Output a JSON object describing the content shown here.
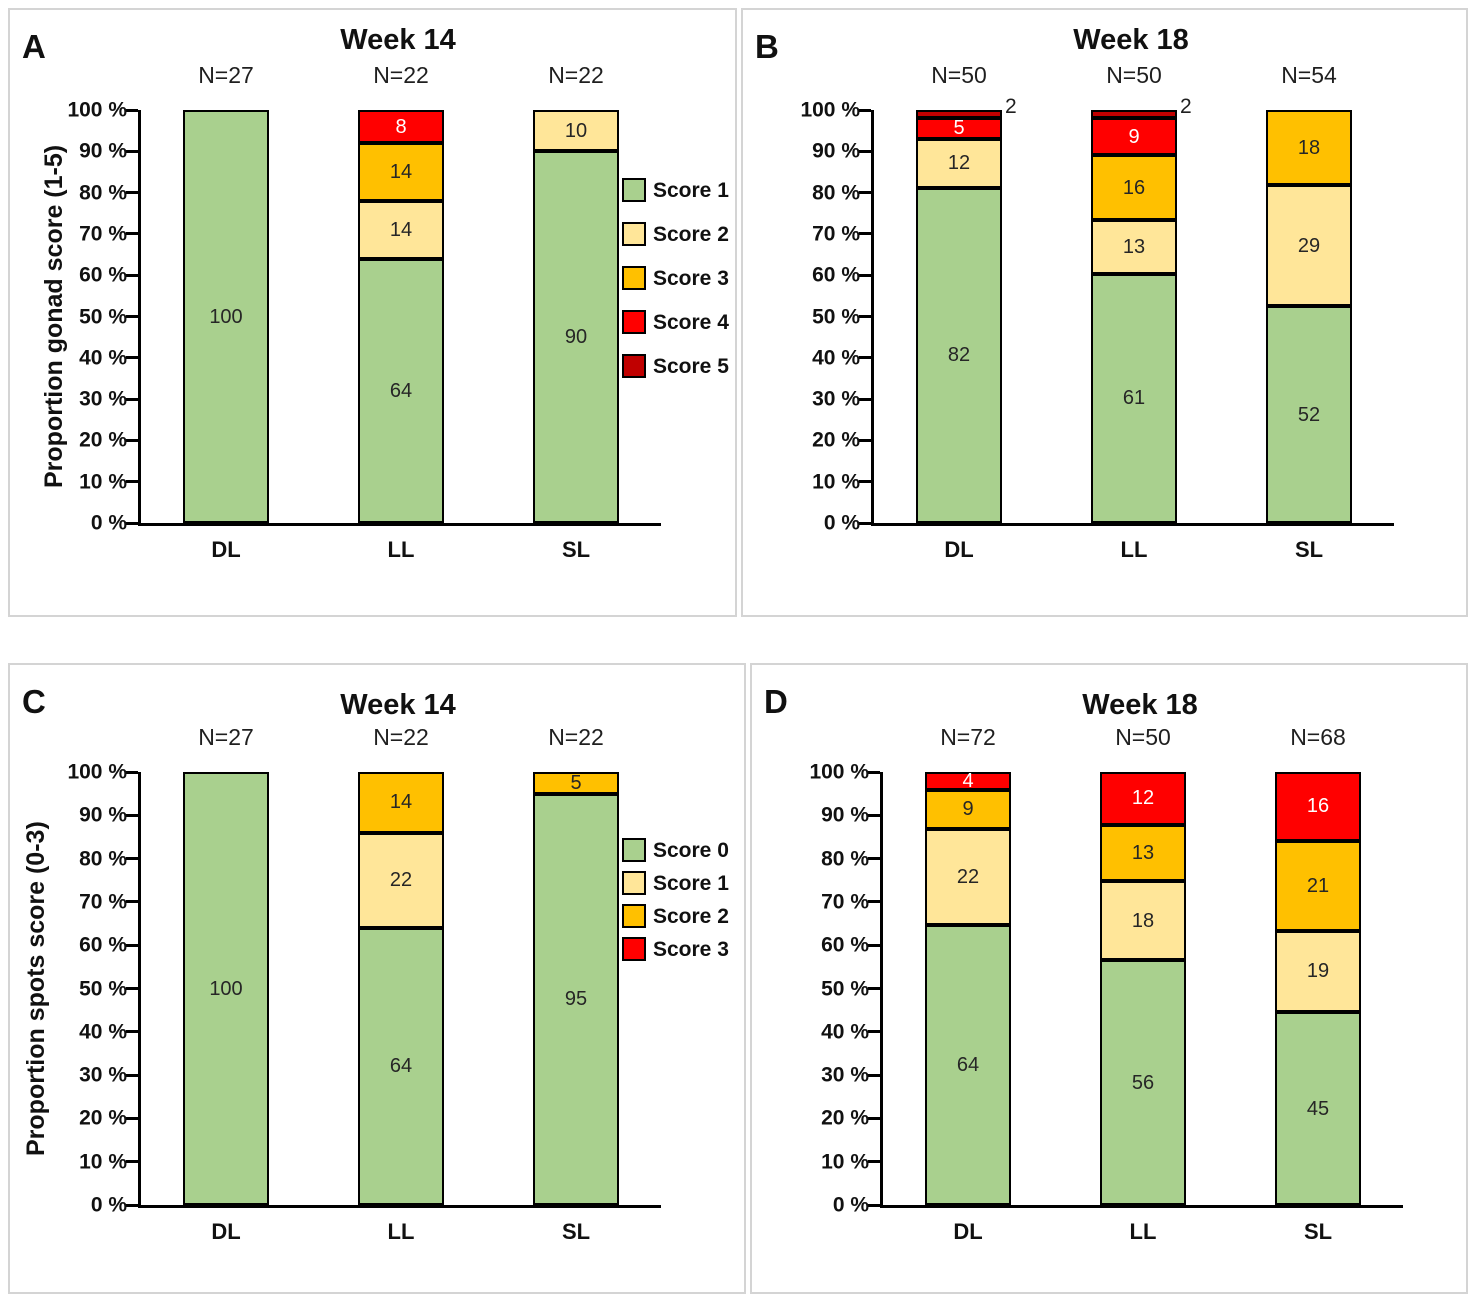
{
  "colors": {
    "green": "#A9D08E",
    "pale_yellow": "#FFE699",
    "orange": "#FFC000",
    "red": "#FF0000",
    "dark_red": "#C00000",
    "label_dark": "#262626",
    "label_light": "#FFFFFF"
  },
  "chart_data": [
    {
      "panel": "A",
      "type": "bar",
      "stacked": true,
      "title": "Week 14",
      "ylabel": "Proportion gonad score (1-5)",
      "ylim": [
        0,
        100
      ],
      "ytick_step": 10,
      "ytick_suffix": " %",
      "grid": false,
      "categories": [
        "DL",
        "LL",
        "SL"
      ],
      "n_labels": [
        "N=27",
        "N=22",
        "N=22"
      ],
      "series": [
        {
          "name": "Score 1",
          "color": "green",
          "label_color": "#262626",
          "values": [
            100,
            64,
            90
          ]
        },
        {
          "name": "Score 2",
          "color": "pale_yellow",
          "label_color": "#262626",
          "values": [
            0,
            14,
            10
          ]
        },
        {
          "name": "Score 3",
          "color": "orange",
          "label_color": "#262626",
          "values": [
            0,
            14,
            0
          ]
        },
        {
          "name": "Score 4",
          "color": "red",
          "label_color": "#FFFFFF",
          "values": [
            0,
            8,
            0
          ]
        },
        {
          "name": "Score 5",
          "color": "dark_red",
          "label_color": "#FFFFFF",
          "values": [
            0,
            0,
            0
          ]
        }
      ],
      "outside_labels": [
        "",
        "",
        ""
      ],
      "legend_position": "right",
      "legend": [
        {
          "label": "Score 1",
          "color": "green"
        },
        {
          "label": "Score 2",
          "color": "pale_yellow"
        },
        {
          "label": "Score 3",
          "color": "orange"
        },
        {
          "label": "Score 4",
          "color": "red"
        },
        {
          "label": "Score 5",
          "color": "dark_red"
        }
      ]
    },
    {
      "panel": "B",
      "type": "bar",
      "stacked": true,
      "title": "Week 18",
      "ylabel": "",
      "ylim": [
        0,
        100
      ],
      "ytick_step": 10,
      "ytick_suffix": " %",
      "grid": false,
      "categories": [
        "DL",
        "LL",
        "SL"
      ],
      "n_labels": [
        "N=50",
        "N=50",
        "N=54"
      ],
      "series": [
        {
          "name": "Score 1",
          "color": "green",
          "label_color": "#262626",
          "values": [
            82,
            61,
            52
          ]
        },
        {
          "name": "Score 2",
          "color": "pale_yellow",
          "label_color": "#262626",
          "values": [
            12,
            13,
            29
          ]
        },
        {
          "name": "Score 3",
          "color": "orange",
          "label_color": "#262626",
          "values": [
            0,
            16,
            18
          ]
        },
        {
          "name": "Score 4",
          "color": "red",
          "label_color": "#FFFFFF",
          "values": [
            5,
            9,
            0
          ]
        },
        {
          "name": "Score 5",
          "color": "dark_red",
          "label_color": "#FFFFFF",
          "values": [
            2,
            2,
            0
          ]
        }
      ],
      "outside_labels": [
        "2",
        "2",
        ""
      ],
      "legend_position": "none",
      "legend": []
    },
    {
      "panel": "C",
      "type": "bar",
      "stacked": true,
      "title": "Week 14",
      "ylabel": "Proportion spots score (0-3)",
      "ylim": [
        0,
        100
      ],
      "ytick_step": 10,
      "ytick_suffix": " %",
      "grid": false,
      "categories": [
        "DL",
        "LL",
        "SL"
      ],
      "n_labels": [
        "N=27",
        "N=22",
        "N=22"
      ],
      "series": [
        {
          "name": "Score 0",
          "color": "green",
          "label_color": "#262626",
          "values": [
            100,
            64,
            95
          ]
        },
        {
          "name": "Score 1",
          "color": "pale_yellow",
          "label_color": "#262626",
          "values": [
            0,
            22,
            0
          ]
        },
        {
          "name": "Score 2",
          "color": "orange",
          "label_color": "#262626",
          "values": [
            0,
            14,
            5
          ]
        },
        {
          "name": "Score 3",
          "color": "red",
          "label_color": "#FFFFFF",
          "values": [
            0,
            0,
            0
          ]
        }
      ],
      "outside_labels": [
        "",
        "",
        ""
      ],
      "legend_position": "right",
      "legend": [
        {
          "label": "Score 0",
          "color": "green"
        },
        {
          "label": "Score 1",
          "color": "pale_yellow"
        },
        {
          "label": "Score 2",
          "color": "orange"
        },
        {
          "label": "Score 3",
          "color": "red"
        }
      ]
    },
    {
      "panel": "D",
      "type": "bar",
      "stacked": true,
      "title": "Week 18",
      "ylabel": "",
      "ylim": [
        0,
        100
      ],
      "ytick_step": 10,
      "ytick_suffix": " %",
      "grid": false,
      "categories": [
        "DL",
        "LL",
        "SL"
      ],
      "n_labels": [
        "N=72",
        "N=50",
        "N=68"
      ],
      "series": [
        {
          "name": "Score 0",
          "color": "green",
          "label_color": "#262626",
          "values": [
            64,
            56,
            45
          ]
        },
        {
          "name": "Score 1",
          "color": "pale_yellow",
          "label_color": "#262626",
          "values": [
            22,
            18,
            19
          ]
        },
        {
          "name": "Score 2",
          "color": "orange",
          "label_color": "#262626",
          "values": [
            9,
            13,
            21
          ]
        },
        {
          "name": "Score 3",
          "color": "red",
          "label_color": "#FFFFFF",
          "values": [
            4,
            12,
            16
          ]
        }
      ],
      "outside_labels": [
        "",
        "",
        ""
      ],
      "legend_position": "none",
      "legend": []
    }
  ]
}
